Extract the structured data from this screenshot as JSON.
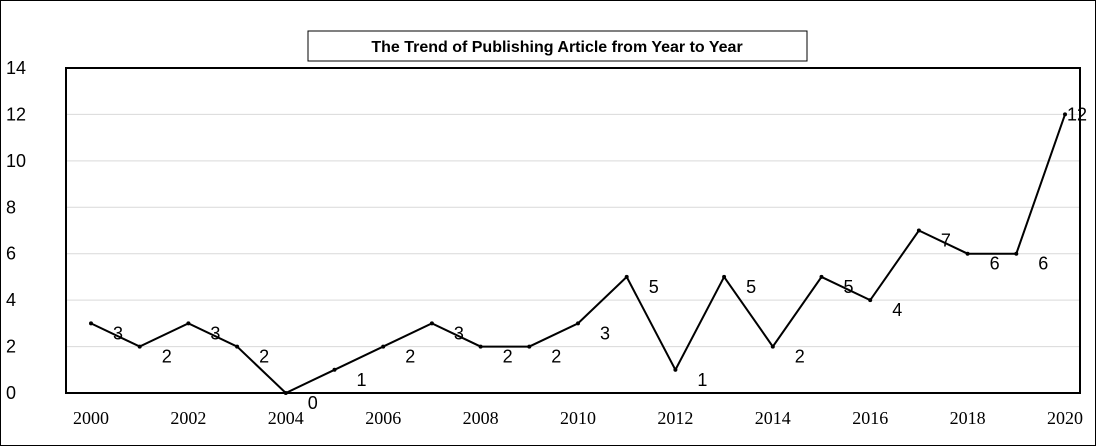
{
  "chart_data": {
    "type": "line",
    "title": "The Trend of Publishing Article from Year to Year",
    "xlabel": "",
    "ylabel": "",
    "x": [
      2000,
      2001,
      2002,
      2003,
      2004,
      2005,
      2006,
      2007,
      2008,
      2009,
      2010,
      2011,
      2012,
      2013,
      2014,
      2015,
      2016,
      2017,
      2018,
      2019,
      2020
    ],
    "x_tick_labels": [
      "2000",
      "2002",
      "2004",
      "2006",
      "2008",
      "2010",
      "2012",
      "2014",
      "2016",
      "2018",
      "2020"
    ],
    "y_tick_labels": [
      "0",
      "2",
      "4",
      "6",
      "8",
      "10",
      "12",
      "14"
    ],
    "series": [
      {
        "values": [
          3,
          2,
          3,
          2,
          0,
          1,
          2,
          3,
          2,
          2,
          3,
          5,
          1,
          5,
          2,
          5,
          4,
          7,
          6,
          6,
          12
        ]
      }
    ],
    "data_labels": [
      {
        "year": 2000,
        "text": "3"
      },
      {
        "year": 2001,
        "text": "2"
      },
      {
        "year": 2002,
        "text": "3"
      },
      {
        "year": 2003,
        "text": "2"
      },
      {
        "year": 2004,
        "text": "0"
      },
      {
        "year": 2005,
        "text": "1"
      },
      {
        "year": 2006,
        "text": "2"
      },
      {
        "year": 2007,
        "text": "3"
      },
      {
        "year": 2008,
        "text": "2"
      },
      {
        "year": 2009,
        "text": "2"
      },
      {
        "year": 2010,
        "text": "3"
      },
      {
        "year": 2011,
        "text": "5"
      },
      {
        "year": 2012,
        "text": "1"
      },
      {
        "year": 2013,
        "text": "5"
      },
      {
        "year": 2014,
        "text": "2"
      },
      {
        "year": 2015,
        "text": "5"
      },
      {
        "year": 2016,
        "text": "4"
      },
      {
        "year": 2017,
        "text": "7"
      },
      {
        "year": 2018,
        "text": "6"
      },
      {
        "year": 2019,
        "text": "6"
      },
      {
        "year": 2020,
        "text": "12"
      }
    ],
    "xlim": [
      2000,
      2020
    ],
    "ylim": [
      0,
      14
    ],
    "grid": true,
    "legend": "none",
    "line_color": "#000000",
    "grid_color": "#d9d9d9"
  }
}
